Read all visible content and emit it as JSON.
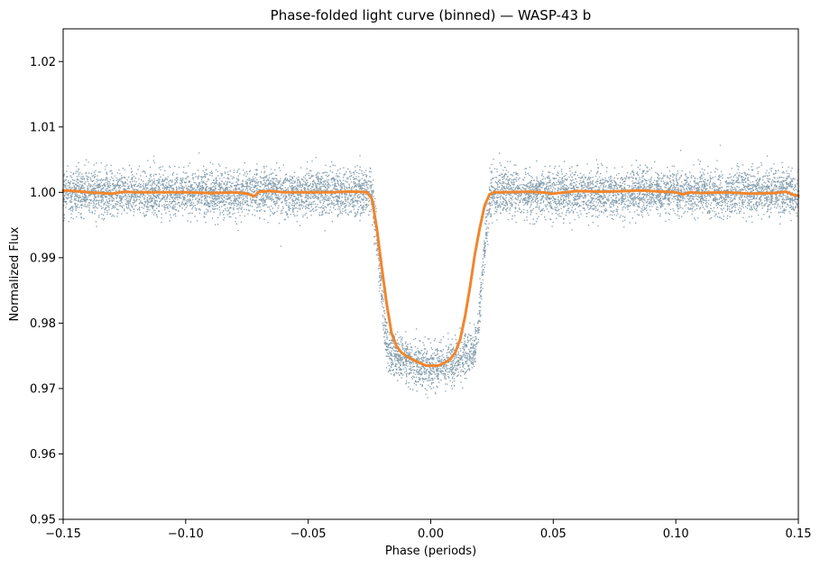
{
  "chart_data": {
    "type": "scatter",
    "title": "Phase-folded light curve (binned) — WASP-43 b",
    "xlabel": "Phase (periods)",
    "ylabel": "Normalized Flux",
    "xlim": [
      -0.15,
      0.15
    ],
    "ylim": [
      0.95,
      1.025
    ],
    "xticks": [
      -0.15,
      -0.1,
      -0.05,
      0.0,
      0.05,
      0.1,
      0.15
    ],
    "xtick_labels": [
      "−0.15",
      "−0.10",
      "−0.05",
      "0.00",
      "0.05",
      "0.10",
      "0.15"
    ],
    "yticks": [
      0.95,
      0.96,
      0.97,
      0.98,
      0.99,
      1.0,
      1.01,
      1.02
    ],
    "ytick_labels": [
      "0.95",
      "0.96",
      "0.97",
      "0.98",
      "0.99",
      "1.00",
      "1.01",
      "1.02"
    ],
    "grid": false,
    "colors": {
      "points": "#1f4e6b",
      "binned": "#f0862e"
    },
    "transit_model": {
      "baseline": 1.0,
      "depth": 0.0265,
      "ingress_start": -0.025,
      "ingress_end": -0.017,
      "egress_start": 0.017,
      "egress_end": 0.025,
      "noise_sigma": 0.0017
    },
    "binned_series": {
      "x": [
        -0.15,
        -0.145,
        -0.14,
        -0.135,
        -0.13,
        -0.125,
        -0.12,
        -0.11,
        -0.1,
        -0.09,
        -0.08,
        -0.075,
        -0.072,
        -0.07,
        -0.065,
        -0.06,
        -0.05,
        -0.04,
        -0.035,
        -0.03,
        -0.026,
        -0.024,
        -0.022,
        -0.02,
        -0.018,
        -0.016,
        -0.014,
        -0.012,
        -0.01,
        -0.008,
        -0.005,
        -0.002,
        0.0,
        0.003,
        0.006,
        0.008,
        0.01,
        0.012,
        0.014,
        0.016,
        0.018,
        0.02,
        0.022,
        0.024,
        0.026,
        0.03,
        0.04,
        0.045,
        0.05,
        0.055,
        0.06,
        0.07,
        0.08,
        0.085,
        0.09,
        0.095,
        0.1,
        0.103,
        0.106,
        0.11,
        0.12,
        0.13,
        0.14,
        0.145,
        0.148,
        0.15
      ],
      "y": [
        1.0003,
        1.0002,
        1.0,
        0.9999,
        0.9998,
        1.0001,
        1.0,
        1.0,
        1.0,
        0.9999,
        1.0,
        0.9998,
        0.9994,
        1.0001,
        1.0002,
        1.0,
        1.0,
        1.0,
        1.0001,
        1.0001,
        1.0,
        0.999,
        0.9945,
        0.9885,
        0.983,
        0.9785,
        0.9765,
        0.9755,
        0.975,
        0.9745,
        0.974,
        0.9735,
        0.9735,
        0.9735,
        0.974,
        0.9745,
        0.9755,
        0.9775,
        0.981,
        0.9855,
        0.9905,
        0.9945,
        0.998,
        0.9997,
        1.0,
        1.0,
        1.0001,
        1.0,
        0.9998,
        1.0,
        1.0002,
        1.0001,
        1.0002,
        1.0003,
        1.0002,
        1.0001,
        1.0,
        0.9997,
        1.0,
        0.9999,
        1.0,
        0.9998,
        0.9999,
        1.0001,
        0.9996,
        0.9995
      ]
    }
  }
}
